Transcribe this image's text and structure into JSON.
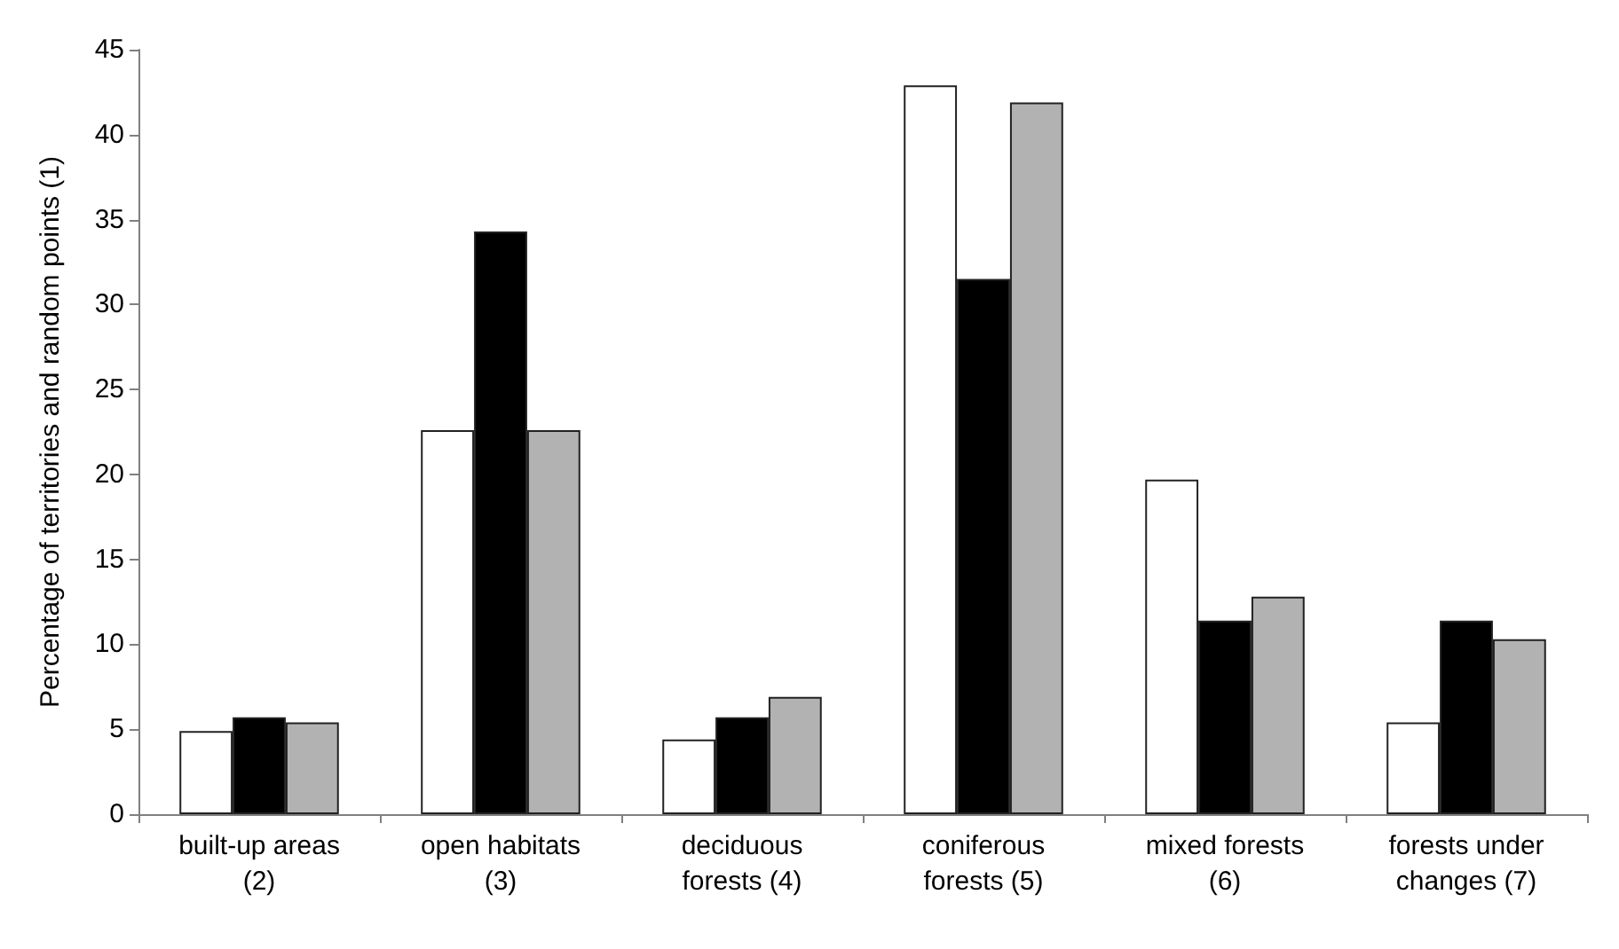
{
  "chart_data": {
    "type": "bar",
    "ylabel": "Percentage of territories and random points (1)",
    "categories": [
      "built-up areas\n(2)",
      "open habitats\n(3)",
      "deciduous\nforests (4)",
      "coniferous\nforests (5)",
      "mixed forests\n(6)",
      "forests under\nchanges (7)"
    ],
    "series": [
      {
        "color": "#ffffff",
        "values": [
          4.9,
          22.6,
          4.4,
          42.9,
          19.7,
          5.4
        ]
      },
      {
        "color": "#000000",
        "values": [
          5.7,
          34.3,
          5.7,
          31.5,
          11.4,
          11.4
        ]
      },
      {
        "color": "#b2b2b2",
        "values": [
          5.4,
          22.6,
          6.9,
          41.9,
          12.8,
          10.3
        ]
      }
    ],
    "ylim": [
      0,
      45
    ],
    "yticks": [
      0,
      5,
      10,
      15,
      20,
      25,
      30,
      35,
      40,
      45
    ],
    "grid": false
  }
}
